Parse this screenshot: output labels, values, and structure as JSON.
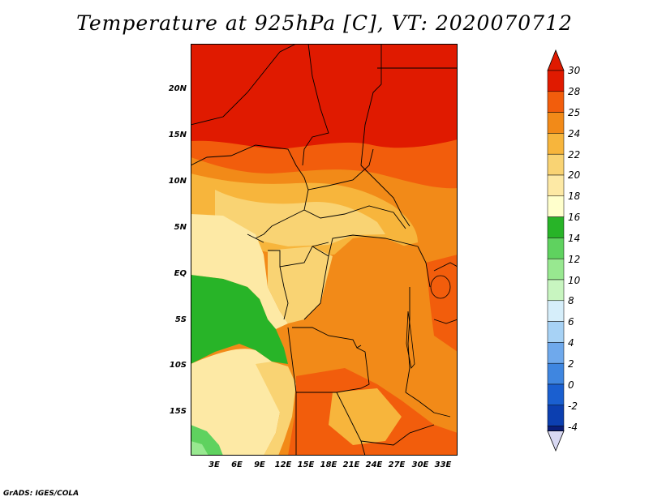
{
  "title": "Temperature at 925hPa [C], VT: 2020070712",
  "credit": "GrADS: IGES/COLA",
  "map": {
    "lat_labels": [
      "20N",
      "15N",
      "10N",
      "5N",
      "EQ",
      "5S",
      "10S",
      "15S"
    ],
    "lon_labels": [
      "3E",
      "6E",
      "9E",
      "12E",
      "15E",
      "18E",
      "21E",
      "24E",
      "27E",
      "30E",
      "33E"
    ]
  },
  "colorbar": {
    "labels": [
      "30",
      "28",
      "25",
      "24",
      "22",
      "20",
      "18",
      "16",
      "14",
      "12",
      "10",
      "8",
      "6",
      "4",
      "2",
      "0",
      "-2",
      "-4"
    ],
    "colors": [
      "#a50f00",
      "#e01a00",
      "#f25d0c",
      "#f28a18",
      "#f7b53c",
      "#f9d373",
      "#fde9a5",
      "#ffffcc",
      "#28b428",
      "#5fd25f",
      "#98e890",
      "#c8f5c0",
      "#d6eefa",
      "#a7d2f5",
      "#6fa9ec",
      "#3f86e0",
      "#1a5fd0",
      "#0c3fb0",
      "#0a1e7a",
      "#d8d8f2"
    ]
  },
  "legend_colors": {
    "t30plus": "#e01a00",
    "t28": "#f25d0c",
    "t25": "#f28a18",
    "t24": "#f7b53c",
    "t22": "#f9d373",
    "t20": "#fde9a5",
    "t18": "#ffffcc",
    "t16": "#28b428",
    "t14": "#5fd25f",
    "t12": "#98e890"
  }
}
